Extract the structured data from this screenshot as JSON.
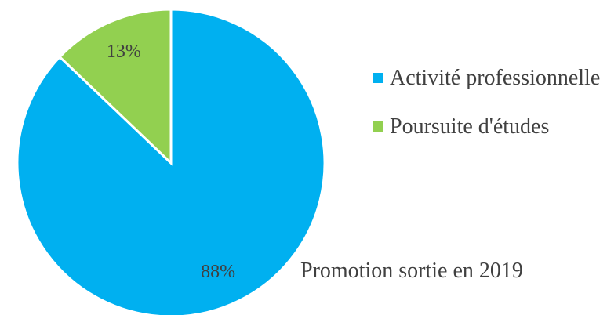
{
  "chart_data": {
    "type": "pie",
    "categories": [
      "Activité professionnelle",
      "Poursuite d'études"
    ],
    "values": [
      88,
      13
    ],
    "value_labels": [
      "88%",
      "13%"
    ],
    "colors": [
      "#00b0f0",
      "#92d050"
    ],
    "legend": "right",
    "caption": "Promotion sortie en 2019"
  }
}
